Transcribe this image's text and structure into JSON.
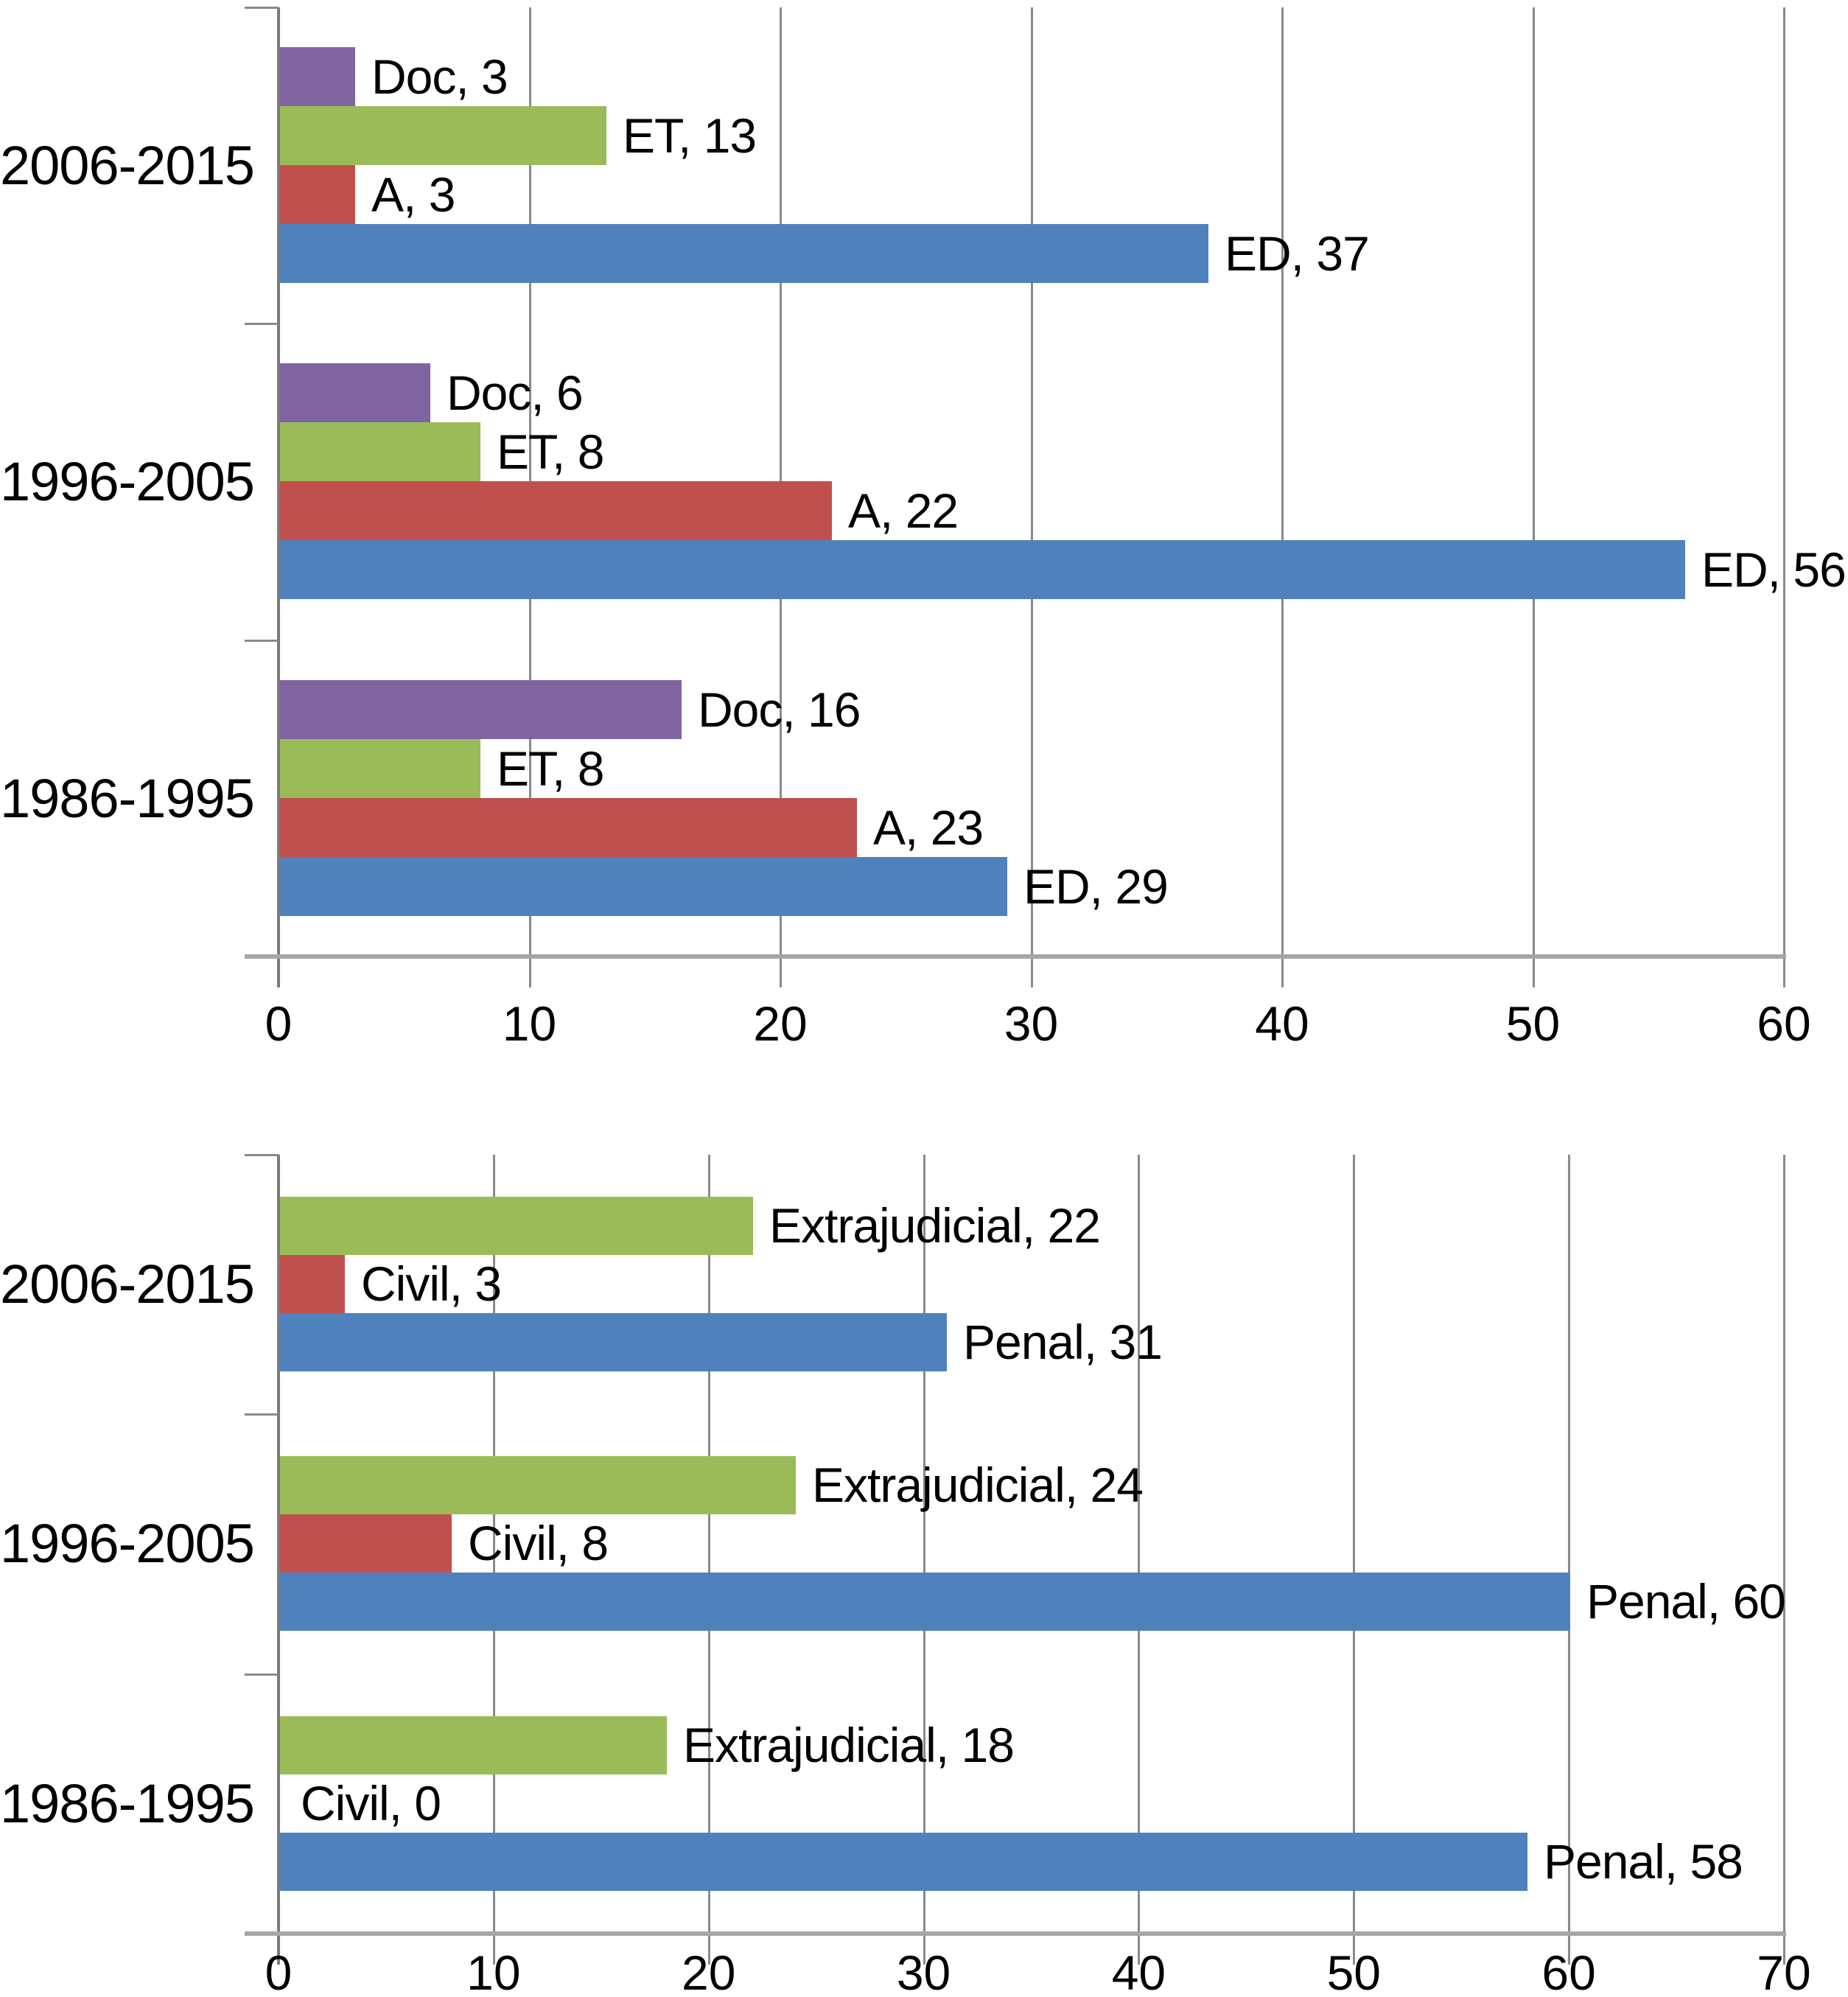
{
  "figure": {
    "description": "Two stacked horizontal grouped bar charts with data labels, no legend, gridlines every 10 units",
    "background": "#ffffff",
    "text_color": "#000000",
    "gridline_color": "#8a8a8a",
    "axis_line_color": "#a6a6a6"
  },
  "chart_data": [
    {
      "type": "bar",
      "orientation": "horizontal",
      "title": "",
      "xlabel": "",
      "ylabel": "",
      "categories": [
        "2006-2015",
        "1996-2005",
        "1986-1995"
      ],
      "series": [
        {
          "name": "Doc",
          "color": "#8064A2",
          "values": [
            3,
            6,
            16
          ]
        },
        {
          "name": "ET",
          "color": "#9BBB59",
          "values": [
            13,
            8,
            8
          ]
        },
        {
          "name": "A",
          "color": "#C0504D",
          "values": [
            3,
            22,
            23
          ]
        },
        {
          "name": "ED",
          "color": "#4F81BD",
          "values": [
            37,
            56,
            29
          ]
        }
      ],
      "data_labels": [
        [
          "Doc, 3",
          "ET, 13",
          "A, 3",
          "ED, 37"
        ],
        [
          "Doc, 6",
          "ET, 8",
          "A, 22",
          "ED, 56"
        ],
        [
          "Doc, 16",
          "ET, 8",
          "A, 23",
          "ED, 29"
        ]
      ],
      "xlim": [
        0,
        60
      ],
      "xtick_labels": [
        "0",
        "10",
        "20",
        "30",
        "40",
        "50",
        "60"
      ],
      "grid": true,
      "legend": false
    },
    {
      "type": "bar",
      "orientation": "horizontal",
      "title": "",
      "xlabel": "",
      "ylabel": "",
      "categories": [
        "2006-2015",
        "1996-2005",
        "1986-1995"
      ],
      "series": [
        {
          "name": "Extrajudicial",
          "color": "#9BBB59",
          "values": [
            22,
            24,
            18
          ]
        },
        {
          "name": "Civil",
          "color": "#C0504D",
          "values": [
            3,
            8,
            0
          ]
        },
        {
          "name": "Penal",
          "color": "#4F81BD",
          "values": [
            31,
            60,
            58
          ]
        }
      ],
      "data_labels": [
        [
          "Extrajudicial, 22",
          "Civil, 3",
          "Penal, 31"
        ],
        [
          "Extrajudicial, 24",
          "Civil, 8",
          "Penal, 60"
        ],
        [
          "Extrajudicial, 18",
          "Civil, 0",
          "Penal, 58"
        ]
      ],
      "xlim": [
        0,
        70
      ],
      "xtick_labels": [
        "0",
        "10",
        "20",
        "30",
        "40",
        "50",
        "60",
        "70"
      ],
      "grid": true,
      "legend": false
    }
  ]
}
